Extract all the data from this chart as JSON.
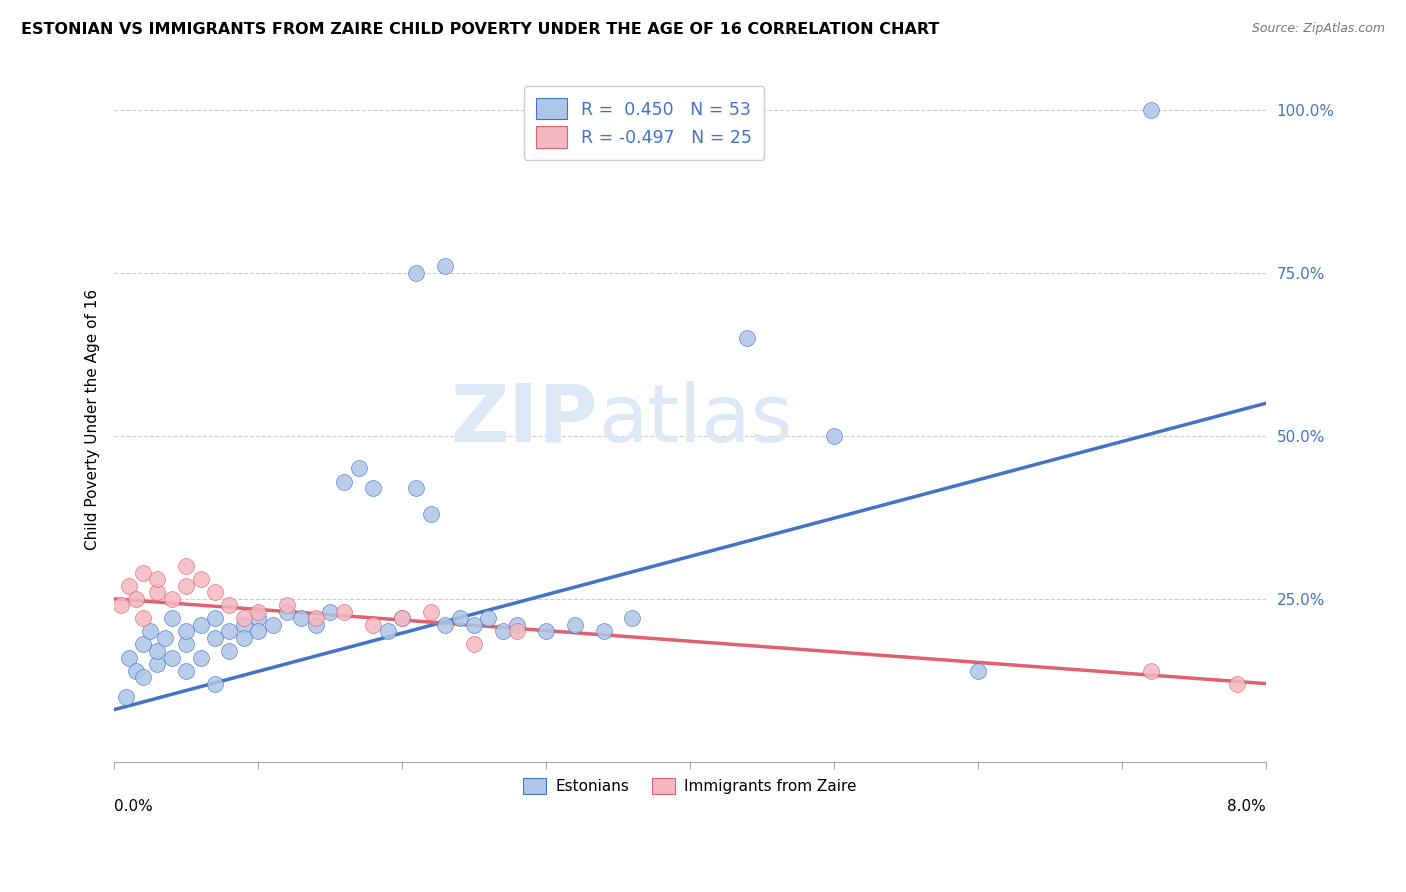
{
  "title": "ESTONIAN VS IMMIGRANTS FROM ZAIRE CHILD POVERTY UNDER THE AGE OF 16 CORRELATION CHART",
  "source": "Source: ZipAtlas.com",
  "ylabel": "Child Poverty Under the Age of 16",
  "legend_label1": "Estonians",
  "legend_label2": "Immigrants from Zaire",
  "r1": 0.45,
  "n1": 53,
  "r2": -0.497,
  "n2": 25,
  "blue_color": "#aec6e8",
  "pink_color": "#f4b8c1",
  "line_blue": "#4472c4",
  "line_pink": "#e06070",
  "xlim": [
    0,
    0.08
  ],
  "ylim": [
    0,
    1.05
  ],
  "ytick_vals": [
    0.25,
    0.5,
    0.75,
    1.0
  ],
  "ytick_labels": [
    "25.0%",
    "50.0%",
    "75.0%",
    "100.0%"
  ],
  "blue_line_x": [
    0,
    0.08
  ],
  "blue_line_y": [
    0.08,
    0.55
  ],
  "pink_line_x": [
    0,
    0.08
  ],
  "pink_line_y": [
    0.25,
    0.12
  ],
  "est_x": [
    0.0008,
    0.001,
    0.0015,
    0.002,
    0.002,
    0.0025,
    0.003,
    0.003,
    0.0035,
    0.004,
    0.004,
    0.005,
    0.005,
    0.005,
    0.006,
    0.006,
    0.007,
    0.007,
    0.008,
    0.008,
    0.009,
    0.009,
    0.01,
    0.01,
    0.011,
    0.012,
    0.013,
    0.014,
    0.015,
    0.016,
    0.017,
    0.018,
    0.019,
    0.02,
    0.021,
    0.022,
    0.023,
    0.024,
    0.025,
    0.026,
    0.027,
    0.028,
    0.03,
    0.032,
    0.034,
    0.036,
    0.021,
    0.023,
    0.044,
    0.05,
    0.06,
    0.072,
    0.007
  ],
  "est_y": [
    0.1,
    0.16,
    0.14,
    0.18,
    0.13,
    0.2,
    0.15,
    0.17,
    0.19,
    0.16,
    0.22,
    0.18,
    0.2,
    0.14,
    0.21,
    0.16,
    0.19,
    0.22,
    0.2,
    0.17,
    0.21,
    0.19,
    0.22,
    0.2,
    0.21,
    0.23,
    0.22,
    0.21,
    0.23,
    0.43,
    0.45,
    0.42,
    0.2,
    0.22,
    0.42,
    0.38,
    0.21,
    0.22,
    0.21,
    0.22,
    0.2,
    0.21,
    0.2,
    0.21,
    0.2,
    0.22,
    0.75,
    0.76,
    0.65,
    0.5,
    0.14,
    1.0,
    0.12
  ],
  "zaire_x": [
    0.0005,
    0.001,
    0.0015,
    0.002,
    0.002,
    0.003,
    0.003,
    0.004,
    0.005,
    0.005,
    0.006,
    0.007,
    0.008,
    0.009,
    0.01,
    0.012,
    0.014,
    0.016,
    0.018,
    0.02,
    0.022,
    0.025,
    0.028,
    0.072,
    0.078
  ],
  "zaire_y": [
    0.24,
    0.27,
    0.25,
    0.29,
    0.22,
    0.26,
    0.28,
    0.25,
    0.27,
    0.3,
    0.28,
    0.26,
    0.24,
    0.22,
    0.23,
    0.24,
    0.22,
    0.23,
    0.21,
    0.22,
    0.23,
    0.18,
    0.2,
    0.14,
    0.12
  ]
}
